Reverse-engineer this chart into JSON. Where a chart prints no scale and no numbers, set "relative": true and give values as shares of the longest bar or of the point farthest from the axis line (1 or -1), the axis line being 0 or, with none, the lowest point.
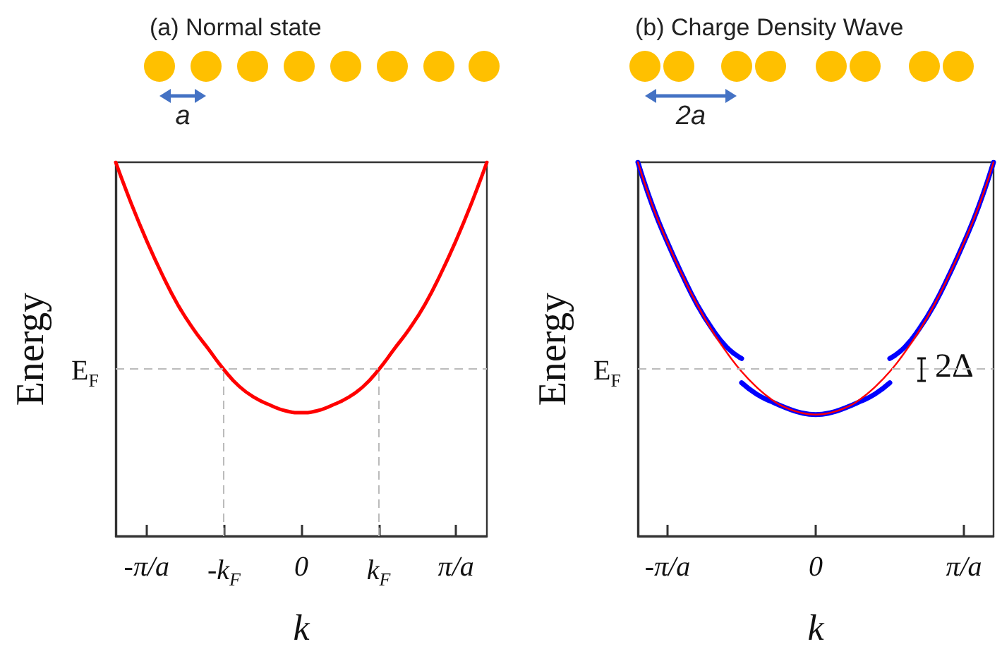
{
  "chart_data": [
    {
      "type": "line",
      "title": "(a) Normal state",
      "xlabel": "k",
      "ylabel": "Energy",
      "relative": true,
      "grid": false,
      "categories": [
        null,
        null,
        "-π/a",
        null,
        null,
        null,
        null,
        "-k$_{F}$",
        null,
        null,
        null,
        null,
        "0",
        null,
        null,
        null,
        null,
        "k$_{F}$",
        null,
        null,
        null,
        null,
        "π/a",
        null,
        null
      ],
      "series": [
        {
          "color": "#ff0000",
          "values": [
            1.0,
            0.89,
            0.79,
            0.7,
            0.62,
            0.555,
            0.5,
            0.445,
            0.4,
            0.37,
            0.35,
            0.335,
            0.33,
            0.335,
            0.35,
            0.37,
            0.4,
            0.445,
            0.5,
            0.555,
            0.62,
            0.7,
            0.79,
            0.89,
            1.0
          ]
        }
      ],
      "ref_lines": [
        {
          "axis": "y",
          "value": 0.445,
          "label": "E$_{F}$",
          "color": "#bbbbbb",
          "line_style": "dashed"
        },
        {
          "axis": "x",
          "value": "-k$_{F}$",
          "color": "#bbbbbb",
          "line_style": "dashed"
        },
        {
          "axis": "x",
          "value": "k$_{F}$",
          "color": "#bbbbbb",
          "line_style": "dashed"
        }
      ],
      "annotations": [
        "a"
      ]
    },
    {
      "type": "line",
      "title": "(b) Charge Density Wave",
      "xlabel": "k",
      "ylabel": "Energy",
      "relative": true,
      "grid": false,
      "categories": [
        null,
        null,
        "-π/a",
        null,
        null,
        null,
        null,
        null,
        null,
        null,
        null,
        null,
        "0",
        null,
        null,
        null,
        null,
        null,
        null,
        null,
        null,
        null,
        "π/a",
        null,
        null
      ],
      "series": [
        {
          "color": "#ff0000",
          "values": [
            1.0,
            0.882,
            0.785,
            0.698,
            0.619,
            0.55,
            0.491,
            0.44,
            0.399,
            0.366,
            0.343,
            0.33,
            0.325,
            0.33,
            0.343,
            0.366,
            0.399,
            0.44,
            0.491,
            0.55,
            0.619,
            0.698,
            0.785,
            0.882,
            1.0
          ]
        },
        {
          "color": "#0000ff",
          "values": [
            1.0,
            0.882,
            0.785,
            0.698,
            0.619,
            0.555,
            0.505,
            0.475,
            null,
            null,
            null,
            null,
            null,
            null,
            null,
            null,
            null,
            null,
            null,
            null,
            null,
            null,
            null,
            null,
            null
          ]
        },
        {
          "color": "#0000ff",
          "values": [
            null,
            null,
            null,
            null,
            null,
            null,
            null,
            0.41,
            0.38,
            0.36,
            0.343,
            0.33,
            0.325,
            0.33,
            0.343,
            0.36,
            0.38,
            0.41,
            null,
            null,
            null,
            null,
            null,
            null,
            null
          ]
        },
        {
          "color": "#0000ff",
          "values": [
            null,
            null,
            null,
            null,
            null,
            null,
            null,
            null,
            null,
            null,
            null,
            null,
            null,
            null,
            null,
            null,
            null,
            0.475,
            0.505,
            0.555,
            0.619,
            0.698,
            0.785,
            0.882,
            1.0
          ]
        }
      ],
      "ref_lines": [
        {
          "axis": "y",
          "value": 0.445,
          "label": "E$_{F}$",
          "color": "#bbbbbb",
          "line_style": "dashed"
        }
      ],
      "annotations": [
        "2a",
        "2Δ"
      ]
    }
  ]
}
